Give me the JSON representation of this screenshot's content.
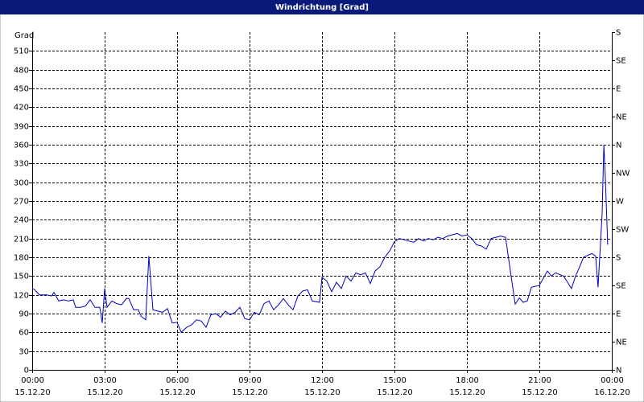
{
  "chart_data": {
    "type": "line",
    "title": "Windrichtung [Grad]",
    "y_label": "Grad",
    "color": "#0000c8",
    "grid": true,
    "x": [
      0,
      0.1,
      0.3,
      0.6,
      0.8,
      0.9,
      1.1,
      1.3,
      1.5,
      1.7,
      1.8,
      2.0,
      2.2,
      2.4,
      2.6,
      2.8,
      2.9,
      3.0,
      3.1,
      3.3,
      3.5,
      3.7,
      3.9,
      4.0,
      4.2,
      4.4,
      4.5,
      4.7,
      4.83,
      5.0,
      5.2,
      5.4,
      5.6,
      5.8,
      6.0,
      6.17,
      6.4,
      6.6,
      6.8,
      7.0,
      7.2,
      7.4,
      7.6,
      7.8,
      8.0,
      8.2,
      8.4,
      8.6,
      8.8,
      9.0,
      9.2,
      9.4,
      9.6,
      9.8,
      10.0,
      10.2,
      10.4,
      10.6,
      10.8,
      11.0,
      11.2,
      11.4,
      11.6,
      11.9,
      12.0,
      12.2,
      12.4,
      12.6,
      12.8,
      13.0,
      13.2,
      13.4,
      13.6,
      13.8,
      14.0,
      14.2,
      14.4,
      14.6,
      14.8,
      15.0,
      15.2,
      15.4,
      15.6,
      15.8,
      16.0,
      16.2,
      16.4,
      16.6,
      16.8,
      17.0,
      17.2,
      17.4,
      17.6,
      17.8,
      18.0,
      18.2,
      18.4,
      18.6,
      18.8,
      19.0,
      19.2,
      19.4,
      19.6,
      19.83,
      20.0,
      20.17,
      20.33,
      20.5,
      20.67,
      21.0,
      21.33,
      21.5,
      21.67,
      22.0,
      22.17,
      22.33,
      22.5,
      22.67,
      22.83,
      23.17,
      23.33,
      23.43,
      23.6,
      23.67,
      23.73,
      23.83
    ],
    "values": [
      130,
      128,
      120,
      120,
      118,
      124,
      110,
      112,
      110,
      112,
      100,
      100,
      102,
      112,
      100,
      100,
      75,
      130,
      100,
      110,
      106,
      104,
      114,
      114,
      96,
      96,
      86,
      80,
      182,
      96,
      94,
      92,
      98,
      75,
      76,
      60,
      68,
      72,
      80,
      78,
      68,
      88,
      90,
      84,
      94,
      88,
      92,
      100,
      82,
      80,
      92,
      88,
      106,
      110,
      96,
      104,
      114,
      104,
      96,
      118,
      126,
      128,
      110,
      108,
      148,
      142,
      125,
      140,
      130,
      150,
      142,
      155,
      152,
      155,
      138,
      158,
      165,
      180,
      190,
      205,
      210,
      208,
      206,
      204,
      210,
      206,
      210,
      208,
      212,
      210,
      214,
      216,
      218,
      214,
      216,
      210,
      200,
      198,
      193,
      210,
      212,
      214,
      212,
      150,
      105,
      115,
      108,
      110,
      132,
      135,
      158,
      150,
      155,
      150,
      140,
      130,
      150,
      165,
      180,
      186,
      182,
      132,
      250,
      360,
      310,
      200
    ],
    "xlim": [
      0,
      24
    ],
    "xticks": [
      {
        "value": 0,
        "label": "00:00",
        "date": "15.12.20"
      },
      {
        "value": 3,
        "label": "03:00",
        "date": "15.12.20"
      },
      {
        "value": 6,
        "label": "06:00",
        "date": "15.12.20"
      },
      {
        "value": 9,
        "label": "09:00",
        "date": "15.12.20"
      },
      {
        "value": 12,
        "label": "12:00",
        "date": "15.12.20"
      },
      {
        "value": 15,
        "label": "15:00",
        "date": "15.12.20"
      },
      {
        "value": 18,
        "label": "18:00",
        "date": "15.12.20"
      },
      {
        "value": 21,
        "label": "21:00",
        "date": "15.12.20"
      },
      {
        "value": 24,
        "label": "00:00",
        "date": "16.12.20"
      }
    ],
    "ylim": [
      0,
      540
    ],
    "yticks": [
      0,
      30,
      60,
      90,
      120,
      150,
      180,
      210,
      240,
      270,
      300,
      330,
      360,
      390,
      420,
      450,
      480,
      510
    ],
    "y2lim": [
      0,
      540
    ],
    "y2ticks": [
      {
        "value": 0,
        "label": "N"
      },
      {
        "value": 45,
        "label": "NE"
      },
      {
        "value": 90,
        "label": "E"
      },
      {
        "value": 135,
        "label": "SE"
      },
      {
        "value": 180,
        "label": "S"
      },
      {
        "value": 225,
        "label": "SW"
      },
      {
        "value": 270,
        "label": "W"
      },
      {
        "value": 315,
        "label": "NW"
      },
      {
        "value": 360,
        "label": "N"
      },
      {
        "value": 405,
        "label": "NE"
      },
      {
        "value": 450,
        "label": "E"
      },
      {
        "value": 495,
        "label": "SE"
      },
      {
        "value": 540,
        "label": "S"
      }
    ]
  }
}
